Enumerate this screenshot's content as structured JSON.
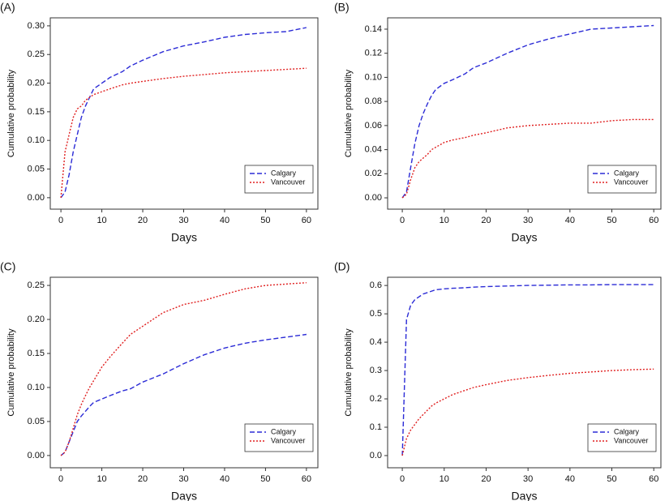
{
  "chart_data": [
    {
      "type": "line",
      "title": "(A)",
      "ylabel": "Cumulative probability",
      "xlabel": "Days",
      "legend": "lower right",
      "x": [
        0,
        1,
        2,
        3,
        4,
        5,
        6,
        7,
        8,
        10,
        12,
        15,
        17,
        20,
        25,
        30,
        35,
        40,
        45,
        50,
        55,
        60
      ],
      "series": [
        {
          "name": "Calgary",
          "color": "#2b2bd6",
          "dash": "dashed",
          "values": [
            0,
            0.01,
            0.04,
            0.08,
            0.11,
            0.14,
            0.16,
            0.175,
            0.19,
            0.2,
            0.21,
            0.22,
            0.23,
            0.24,
            0.255,
            0.265,
            0.272,
            0.28,
            0.285,
            0.288,
            0.29,
            0.297
          ]
        },
        {
          "name": "Vancouver",
          "color": "#e02020",
          "dash": "dotted",
          "values": [
            0,
            0.08,
            0.11,
            0.14,
            0.155,
            0.16,
            0.17,
            0.175,
            0.18,
            0.185,
            0.19,
            0.197,
            0.2,
            0.203,
            0.208,
            0.212,
            0.215,
            0.218,
            0.22,
            0.222,
            0.224,
            0.226
          ]
        }
      ],
      "xlim": [
        -2.6,
        62.8
      ],
      "xticks": [
        0,
        10,
        20,
        30,
        40,
        50,
        60
      ],
      "ylim": [
        -0.02,
        0.314
      ],
      "yticks": [
        {
          "value": 0,
          "label": "0.00"
        },
        0.05,
        {
          "value": 0.1,
          "label": "0.10"
        },
        0.15,
        {
          "value": 0.2,
          "label": "0.20"
        },
        0.25,
        {
          "value": 0.3,
          "label": "0.30"
        }
      ]
    },
    {
      "type": "line",
      "title": "(B)",
      "ylabel": "Cumulative probability",
      "xlabel": "Days",
      "legend": "lower right",
      "x": [
        0,
        1,
        2,
        3,
        4,
        5,
        6,
        7,
        8,
        10,
        12,
        15,
        17,
        20,
        25,
        30,
        35,
        40,
        45,
        50,
        55,
        60
      ],
      "series": [
        {
          "name": "Calgary",
          "color": "#2b2bd6",
          "dash": "dashed",
          "values": [
            0,
            0.005,
            0.025,
            0.045,
            0.06,
            0.07,
            0.078,
            0.085,
            0.09,
            0.095,
            0.098,
            0.103,
            0.108,
            0.112,
            0.12,
            0.127,
            0.132,
            0.136,
            0.14,
            0.141,
            0.142,
            0.143
          ]
        },
        {
          "name": "Vancouver",
          "color": "#e02020",
          "dash": "dotted",
          "values": [
            0,
            0.003,
            0.015,
            0.025,
            0.03,
            0.033,
            0.036,
            0.04,
            0.042,
            0.046,
            0.048,
            0.05,
            0.052,
            0.054,
            0.058,
            0.06,
            0.061,
            0.062,
            0.062,
            0.064,
            0.065,
            0.065
          ]
        }
      ],
      "xlim": [
        -3.5,
        61.7
      ],
      "xticks": [
        0,
        10,
        20,
        30,
        40,
        50,
        60
      ],
      "ylim": [
        -0.0094,
        0.1494
      ],
      "yticks": [
        {
          "value": 0,
          "label": "0.00"
        },
        0.02,
        0.04,
        0.06,
        0.08,
        {
          "value": 0.1,
          "label": "0.10"
        },
        0.12,
        0.14
      ]
    },
    {
      "type": "line",
      "title": "(C)",
      "ylabel": "Cumulative probability",
      "xlabel": "Days",
      "legend": "lower right",
      "x": [
        0,
        1,
        2,
        3,
        4,
        5,
        6,
        7,
        8,
        10,
        12,
        15,
        17,
        20,
        25,
        30,
        35,
        40,
        45,
        50,
        55,
        60
      ],
      "series": [
        {
          "name": "Calgary",
          "color": "#2b2bd6",
          "dash": "dashed",
          "values": [
            0,
            0.005,
            0.02,
            0.035,
            0.05,
            0.058,
            0.065,
            0.072,
            0.078,
            0.083,
            0.088,
            0.095,
            0.098,
            0.108,
            0.12,
            0.135,
            0.148,
            0.158,
            0.165,
            0.17,
            0.174,
            0.178
          ]
        },
        {
          "name": "Vancouver",
          "color": "#e02020",
          "dash": "dotted",
          "values": [
            0,
            0.005,
            0.02,
            0.04,
            0.06,
            0.075,
            0.088,
            0.1,
            0.11,
            0.13,
            0.145,
            0.165,
            0.178,
            0.19,
            0.21,
            0.222,
            0.228,
            0.237,
            0.245,
            0.25,
            0.252,
            0.254
          ]
        }
      ],
      "xlim": [
        -2.6,
        62.8
      ],
      "xticks": [
        0,
        10,
        20,
        30,
        40,
        50,
        60
      ],
      "ylim": [
        -0.018,
        0.262
      ],
      "yticks": [
        {
          "value": 0,
          "label": "0.00"
        },
        0.05,
        {
          "value": 0.1,
          "label": "0.10"
        },
        0.15,
        {
          "value": 0.2,
          "label": "0.20"
        },
        0.25
      ]
    },
    {
      "type": "line",
      "title": "(D)",
      "ylabel": "Cumulative probability",
      "xlabel": "Days",
      "legend": "lower right",
      "x": [
        0,
        1,
        2,
        3,
        4,
        5,
        6,
        7,
        8,
        10,
        12,
        15,
        17,
        20,
        25,
        30,
        35,
        40,
        45,
        50,
        55,
        60
      ],
      "series": [
        {
          "name": "Calgary",
          "color": "#2b2bd6",
          "dash": "dashed",
          "values": [
            0,
            0.48,
            0.53,
            0.55,
            0.56,
            0.57,
            0.575,
            0.58,
            0.585,
            0.588,
            0.59,
            0.592,
            0.594,
            0.596,
            0.598,
            0.6,
            0.601,
            0.602,
            0.602,
            0.603,
            0.603,
            0.603
          ]
        },
        {
          "name": "Vancouver",
          "color": "#e02020",
          "dash": "dotted",
          "values": [
            0,
            0.06,
            0.09,
            0.11,
            0.13,
            0.145,
            0.16,
            0.175,
            0.185,
            0.2,
            0.215,
            0.23,
            0.24,
            0.25,
            0.265,
            0.275,
            0.283,
            0.29,
            0.295,
            0.3,
            0.303,
            0.305
          ]
        }
      ],
      "xlim": [
        -3.5,
        61.7
      ],
      "xticks": [
        0,
        10,
        20,
        30,
        40,
        50,
        60
      ],
      "ylim": [
        -0.043,
        0.629
      ],
      "yticks": [
        {
          "value": 0,
          "label": "0.0"
        },
        0.1,
        0.2,
        0.3,
        0.4,
        0.5,
        0.6
      ]
    }
  ]
}
